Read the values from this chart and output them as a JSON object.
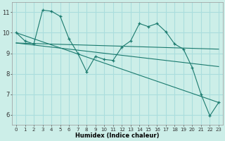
{
  "xlabel": "Humidex (Indice chaleur)",
  "bg_color": "#cceee8",
  "grid_color": "#aadddd",
  "line_color": "#1a7a6e",
  "xlim": [
    -0.5,
    23.5
  ],
  "ylim": [
    5.5,
    11.5
  ],
  "xticks": [
    0,
    1,
    2,
    3,
    4,
    5,
    6,
    7,
    8,
    9,
    10,
    11,
    12,
    13,
    14,
    15,
    16,
    17,
    18,
    19,
    20,
    21,
    22,
    23
  ],
  "yticks": [
    6,
    7,
    8,
    9,
    10,
    11
  ],
  "series_marker": {
    "x": [
      0,
      1,
      2,
      3,
      4,
      5,
      6,
      7,
      8,
      9,
      10,
      11,
      12,
      13,
      14,
      15,
      16,
      17,
      18,
      19,
      20,
      21,
      22,
      23
    ],
    "y": [
      10.0,
      9.6,
      9.45,
      11.1,
      11.05,
      10.8,
      9.7,
      9.0,
      8.1,
      8.85,
      8.7,
      8.65,
      9.3,
      9.6,
      10.45,
      10.3,
      10.45,
      10.05,
      9.45,
      9.2,
      8.3,
      7.0,
      5.95,
      6.6
    ]
  },
  "series_trend": {
    "x": [
      0,
      23
    ],
    "y": [
      9.5,
      9.2
    ]
  },
  "series_smooth1": {
    "x": [
      0,
      1,
      2,
      3,
      4,
      5,
      6,
      7,
      8,
      9,
      10,
      11,
      12,
      13,
      14,
      15,
      16,
      17,
      18,
      19,
      20,
      21,
      22,
      23
    ],
    "y": [
      9.5,
      9.45,
      9.4,
      9.35,
      9.3,
      9.25,
      9.2,
      9.15,
      9.1,
      9.05,
      9.0,
      8.95,
      8.9,
      8.85,
      8.8,
      8.75,
      8.7,
      8.65,
      8.6,
      8.55,
      8.5,
      8.45,
      8.4,
      8.35
    ]
  },
  "series_straight": {
    "x": [
      0,
      23
    ],
    "y": [
      10.0,
      6.6
    ]
  }
}
